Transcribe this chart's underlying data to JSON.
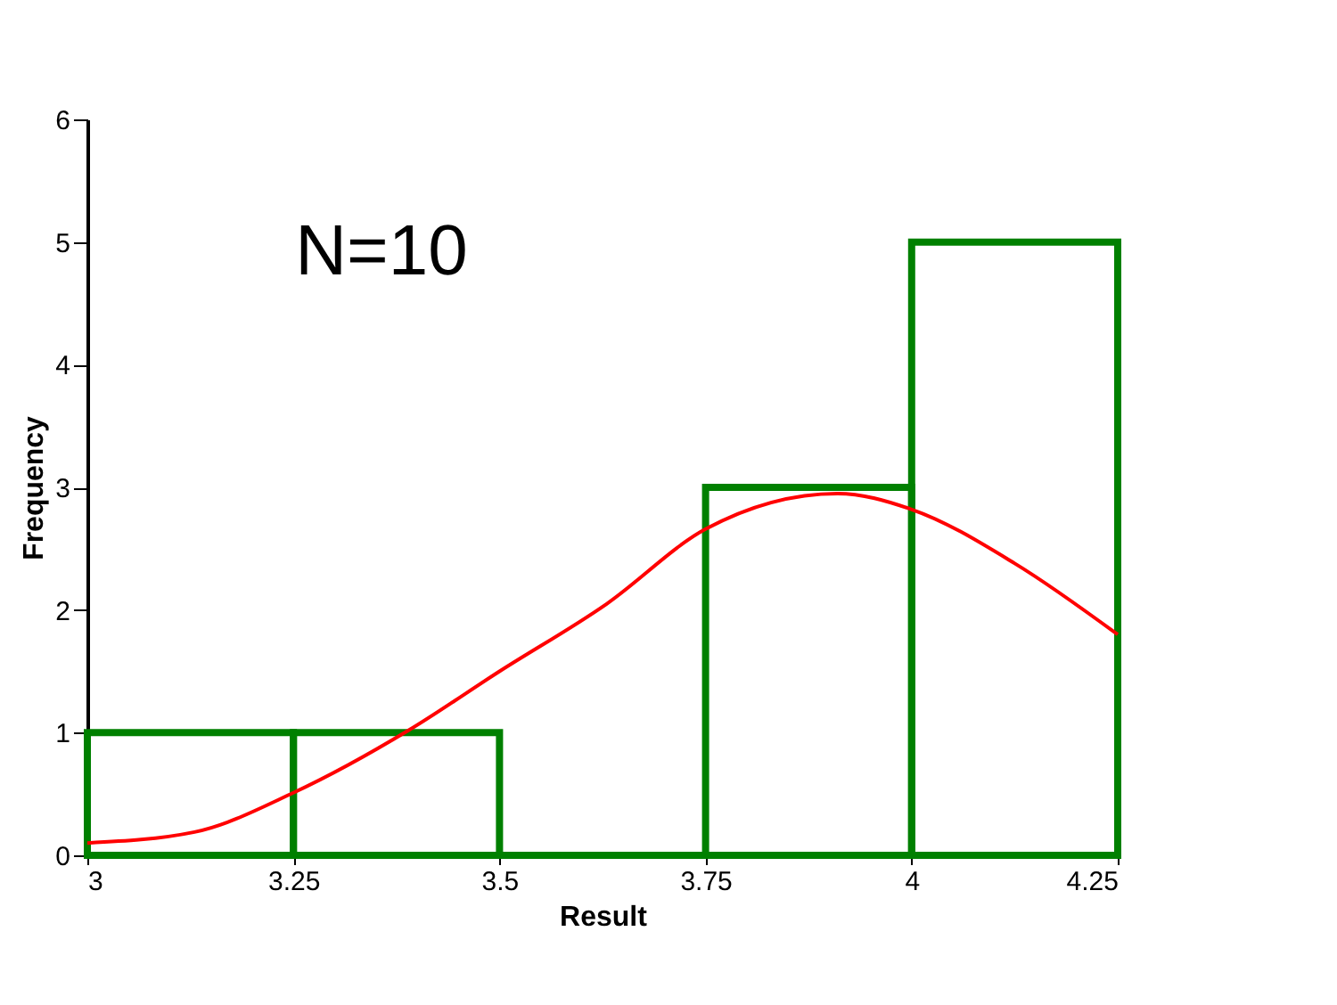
{
  "chart_data": {
    "type": "histogram",
    "xlabel": "Result",
    "ylabel": "Frequency",
    "bins": [
      3,
      3.25,
      3.5,
      3.75,
      4,
      4.25
    ],
    "values": [
      1,
      1,
      0,
      3,
      5
    ],
    "color": "#008000",
    "series": [
      {
        "type": "line",
        "color": "#ff0000",
        "x": [
          3,
          3.13,
          3.25,
          3.39,
          3.5,
          3.63,
          3.75,
          3.91,
          4,
          4.125,
          4.25
        ],
        "values": [
          0.1,
          0.19,
          0.51,
          1.02,
          1.5,
          2.05,
          2.66,
          2.95,
          2.82,
          2.38,
          1.8
        ]
      }
    ],
    "annotations": [
      "N=10"
    ],
    "xlim": [
      3,
      4.25
    ],
    "xticks": [
      3,
      3.25,
      3.5,
      3.75,
      4,
      4.25
    ],
    "ylim": [
      0,
      6
    ],
    "yticks": [
      0,
      1,
      2,
      3,
      4,
      5,
      6
    ],
    "grid": false
  }
}
